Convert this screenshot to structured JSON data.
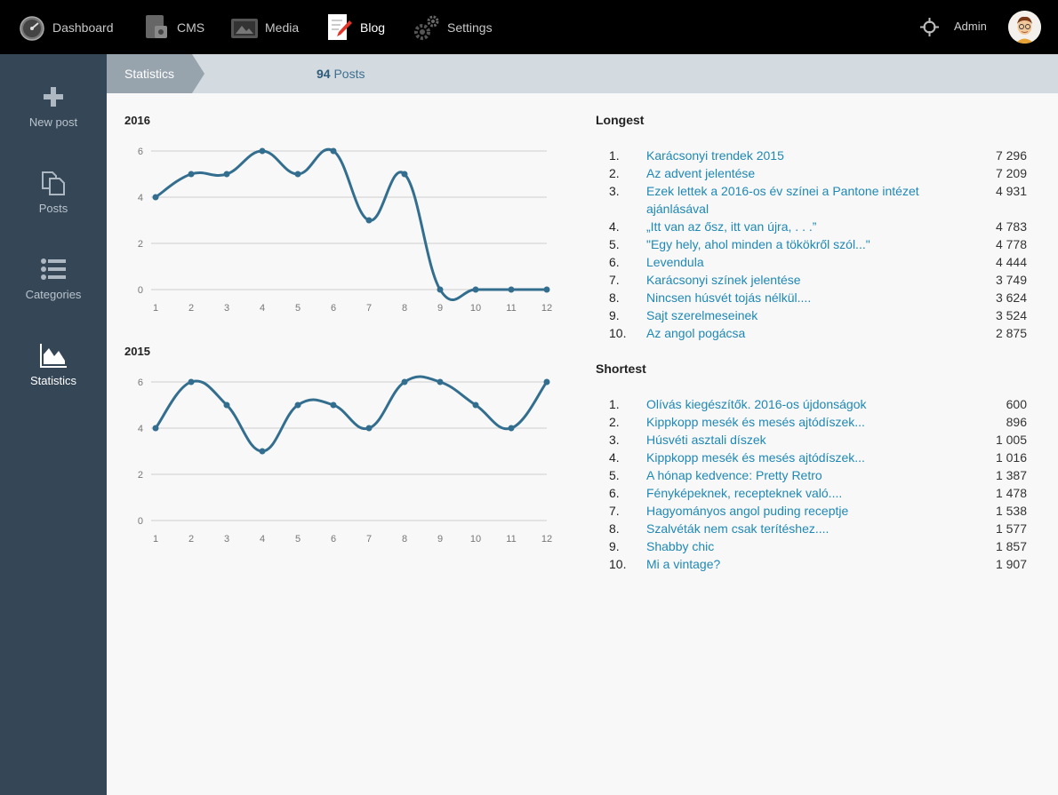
{
  "nav": {
    "items": [
      {
        "label": "Dashboard",
        "icon": "dashboard-gauge-icon"
      },
      {
        "label": "CMS",
        "icon": "cms-icon"
      },
      {
        "label": "Media",
        "icon": "media-icon"
      },
      {
        "label": "Blog",
        "icon": "blog-pencil-icon",
        "active": true
      },
      {
        "label": "Settings",
        "icon": "gear-icon"
      }
    ],
    "user": "Admin"
  },
  "sidebar": {
    "items": [
      {
        "label": "New post",
        "icon": "plus-icon"
      },
      {
        "label": "Posts",
        "icon": "copy-pages-icon"
      },
      {
        "label": "Categories",
        "icon": "list-icon"
      },
      {
        "label": "Statistics",
        "icon": "area-chart-icon",
        "active": true
      }
    ]
  },
  "breadcrumb": {
    "current": "Statistics",
    "count": "94",
    "count_label": "Posts"
  },
  "colors": {
    "line": "#336e8f",
    "link": "#1f88b5",
    "sidebar": "#354656"
  },
  "chart_data": [
    {
      "type": "line",
      "title": "2016",
      "x": [
        "1",
        "2",
        "3",
        "4",
        "5",
        "6",
        "7",
        "8",
        "9",
        "10",
        "11",
        "12"
      ],
      "values": [
        4,
        5,
        5,
        6,
        5,
        6,
        3,
        5,
        0,
        0,
        0,
        0
      ],
      "yticks": [
        0,
        2,
        4,
        6
      ],
      "ylim": [
        0,
        6
      ],
      "grid": true
    },
    {
      "type": "line",
      "title": "2015",
      "x": [
        "1",
        "2",
        "3",
        "4",
        "5",
        "6",
        "7",
        "8",
        "9",
        "10",
        "11",
        "12"
      ],
      "values": [
        4,
        6,
        5,
        3,
        5,
        5,
        4,
        6,
        6,
        5,
        4,
        6
      ],
      "yticks": [
        0,
        2,
        4,
        6
      ],
      "ylim": [
        0,
        6
      ],
      "grid": true
    }
  ],
  "longest": {
    "title": "Longest",
    "items": [
      {
        "n": "1.",
        "title": "Karácsonyi trendek 2015",
        "count": "7 296"
      },
      {
        "n": "2.",
        "title": "Az advent jelentése",
        "count": "7 209"
      },
      {
        "n": "3.",
        "title": "Ezek lettek a 2016-os év színei a Pantone intézet ajánlásával",
        "count": "4 931"
      },
      {
        "n": "4.",
        "title": "„Itt van az ősz, itt van újra, . . .”",
        "count": "4 783"
      },
      {
        "n": "5.",
        "title": "\"Egy hely, ahol minden a tökökről szól...\"",
        "count": "4 778"
      },
      {
        "n": "6.",
        "title": "Levendula",
        "count": "4 444"
      },
      {
        "n": "7.",
        "title": "Karácsonyi színek jelentése",
        "count": "3 749"
      },
      {
        "n": "8.",
        "title": "Nincsen húsvét tojás nélkül....",
        "count": "3 624"
      },
      {
        "n": "9.",
        "title": "Sajt szerelmeseinek",
        "count": "3 524"
      },
      {
        "n": "10.",
        "title": "Az angol pogácsa",
        "count": "2 875"
      }
    ]
  },
  "shortest": {
    "title": "Shortest",
    "items": [
      {
        "n": "1.",
        "title": "Olívás kiegészítők. 2016-os újdonságok",
        "count": "600"
      },
      {
        "n": "2.",
        "title": "Kippkopp mesék és mesés ajtódíszek...",
        "count": "896"
      },
      {
        "n": "3.",
        "title": "Húsvéti asztali díszek",
        "count": "1 005"
      },
      {
        "n": "4.",
        "title": "Kippkopp mesék és mesés ajtódíszek...",
        "count": "1 016"
      },
      {
        "n": "5.",
        "title": "A hónap kedvence: Pretty Retro",
        "count": "1 387"
      },
      {
        "n": "6.",
        "title": "Fényképeknek, recepteknek való....",
        "count": "1 478"
      },
      {
        "n": "7.",
        "title": "Hagyományos angol puding receptje",
        "count": "1 538"
      },
      {
        "n": "8.",
        "title": "Szalvéták nem csak terítéshez....",
        "count": "1 577"
      },
      {
        "n": "9.",
        "title": "Shabby chic",
        "count": "1 857"
      },
      {
        "n": "10.",
        "title": "Mi a vintage?",
        "count": "1 907"
      }
    ]
  }
}
